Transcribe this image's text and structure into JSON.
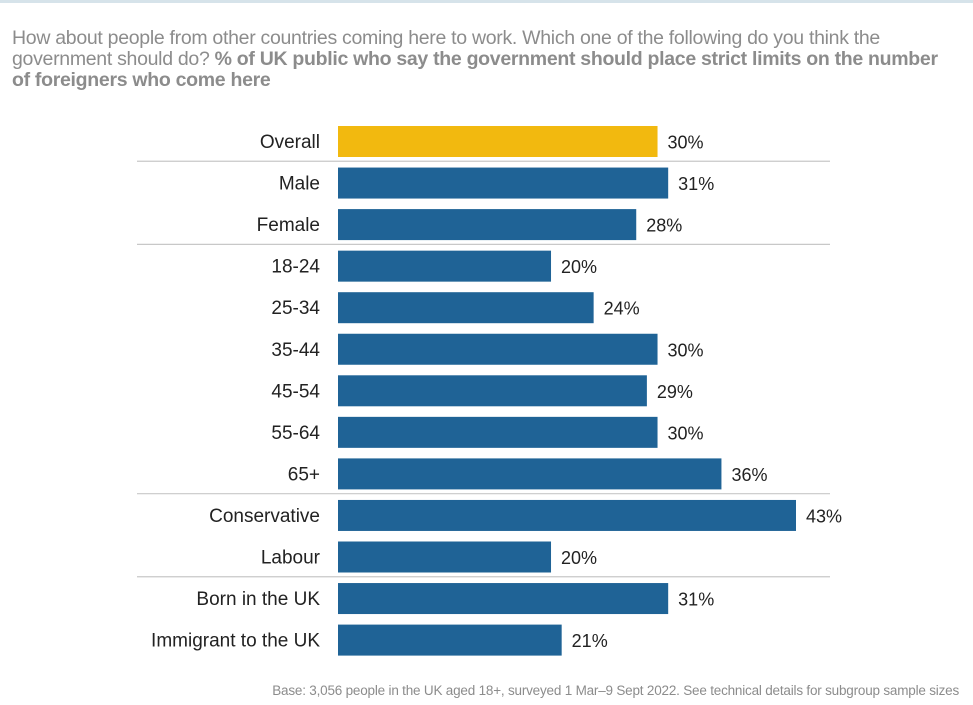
{
  "question": {
    "text": "How about people from other countries coming here to work. Which one of the following do you think the government should do? ",
    "emphasis": "% of UK public who say the government should place strict limits on the number of foreigners who come here"
  },
  "chart_data": {
    "type": "bar",
    "orientation": "horizontal",
    "categories": [
      "Overall",
      "Male",
      "Female",
      "18-24",
      "25-34",
      "35-44",
      "45-54",
      "55-64",
      "65+",
      "Conservative",
      "Labour",
      "Born in the UK",
      "Immigrant to the UK"
    ],
    "values": [
      30,
      31,
      28,
      20,
      24,
      30,
      29,
      30,
      36,
      43,
      20,
      31,
      21
    ],
    "value_labels": [
      "30%",
      "31%",
      "28%",
      "20%",
      "24%",
      "30%",
      "29%",
      "30%",
      "36%",
      "43%",
      "20%",
      "31%",
      "21%"
    ],
    "groups": [
      [
        "Overall"
      ],
      [
        "Male",
        "Female"
      ],
      [
        "18-24",
        "25-34",
        "35-44",
        "45-54",
        "55-64",
        "65+"
      ],
      [
        "Conservative",
        "Labour"
      ],
      [
        "Born in the UK",
        "Immigrant to the UK"
      ]
    ],
    "highlight": "Overall",
    "colors": {
      "bar": "#1f6396",
      "highlight": "#f2b90f",
      "separator": "#c8c8c8"
    },
    "xlim": [
      0,
      43
    ],
    "grid": false
  },
  "footnote": "Base: 3,056 people in the UK aged 18+, surveyed 1 Mar–9 Sept 2022. See technical details for subgroup sample sizes"
}
